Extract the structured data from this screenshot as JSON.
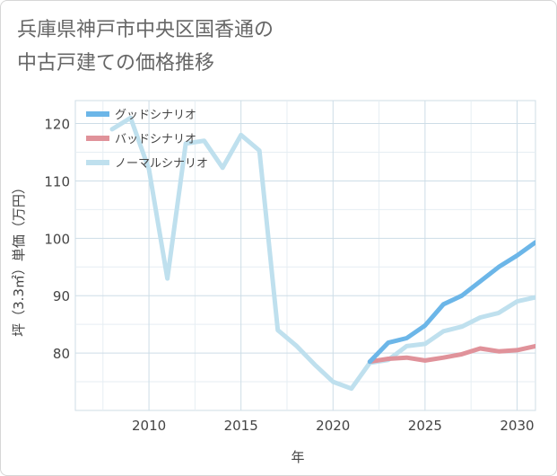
{
  "title_lines": [
    "兵庫県神戸市中央区国香通の",
    "中古戸建ての価格推移"
  ],
  "chart_data": {
    "type": "line",
    "xlabel": "年",
    "ylabel": "坪（3.3㎡）単価（万円）",
    "xlim": [
      2006,
      2031
    ],
    "ylim": [
      70,
      124
    ],
    "x_ticks": [
      2010,
      2015,
      2020,
      2025,
      2030
    ],
    "y_ticks": [
      80,
      90,
      100,
      110,
      120
    ],
    "grid": true,
    "legend_position": "top-left",
    "series": [
      {
        "name": "グッドシナリオ",
        "color": "#6cb6e8",
        "x": [
          2022,
          2023,
          2024,
          2025,
          2026,
          2027,
          2028,
          2029,
          2030,
          2031
        ],
        "values": [
          78.5,
          81.8,
          82.6,
          84.8,
          88.5,
          90.0,
          92.5,
          95.0,
          97.0,
          99.3
        ]
      },
      {
        "name": "バッドシナリオ",
        "color": "#e0929a",
        "x": [
          2022,
          2023,
          2024,
          2025,
          2026,
          2027,
          2028,
          2029,
          2030,
          2031
        ],
        "values": [
          78.5,
          79.0,
          79.2,
          78.7,
          79.2,
          79.8,
          80.8,
          80.3,
          80.5,
          81.2
        ]
      },
      {
        "name": "ノーマルシナリオ",
        "color": "#bfe0ee",
        "x": [
          2008,
          2009,
          2010,
          2011,
          2012,
          2013,
          2014,
          2015,
          2016,
          2017,
          2018,
          2019,
          2020,
          2021,
          2022,
          2023,
          2024,
          2025,
          2026,
          2027,
          2028,
          2029,
          2030,
          2031
        ],
        "values": [
          119.0,
          121.0,
          112.0,
          93.0,
          116.5,
          117.0,
          112.3,
          118.0,
          115.3,
          84.0,
          81.3,
          78.0,
          75.0,
          73.8,
          78.3,
          78.8,
          81.2,
          81.6,
          83.8,
          84.6,
          86.2,
          87.0,
          89.0,
          89.7
        ]
      }
    ]
  }
}
